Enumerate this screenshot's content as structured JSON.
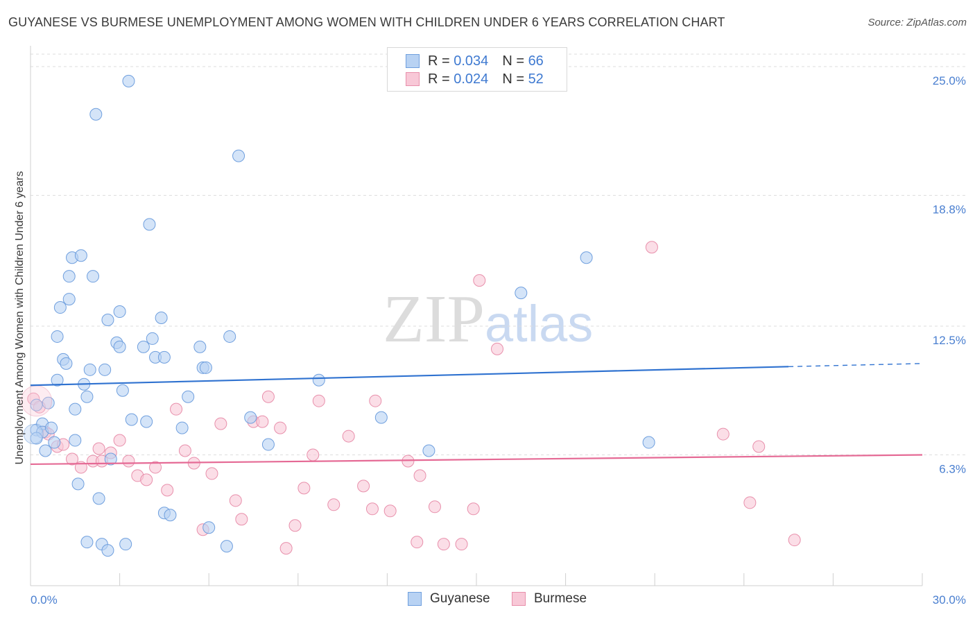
{
  "title": "GUYANESE VS BURMESE UNEMPLOYMENT AMONG WOMEN WITH CHILDREN UNDER 6 YEARS CORRELATION CHART",
  "source": "Source: ZipAtlas.com",
  "watermark": {
    "zip": "ZIP",
    "atlas": "atlas"
  },
  "colors": {
    "guyanese_fill": "#b8d2f3",
    "guyanese_stroke": "#6f9fde",
    "guyanese_line": "#2f72d0",
    "burmese_fill": "#f8c8d7",
    "burmese_stroke": "#e88fab",
    "burmese_line": "#e56a95",
    "tick_text": "#4a7fd0",
    "grid": "#dddddd"
  },
  "legend_top": [
    {
      "r_label": "R =",
      "r_value": "0.034",
      "n_label": "N =",
      "n_value": "66"
    },
    {
      "r_label": "R =",
      "r_value": "0.024",
      "n_label": "N =",
      "n_value": "52"
    }
  ],
  "chart_data": {
    "type": "scatter",
    "title": "GUYANESE VS BURMESE UNEMPLOYMENT AMONG WOMEN WITH CHILDREN UNDER 6 YEARS CORRELATION CHART",
    "xlabel": "",
    "ylabel": "Unemployment Among Women with Children Under 6 years",
    "xlim": [
      0,
      30
    ],
    "ylim": [
      0,
      25.6
    ],
    "x_tick_labels": [
      "0.0%",
      "30.0%"
    ],
    "y_ticks": [
      6.3,
      12.5,
      18.8,
      25.0
    ],
    "y_tick_labels": [
      "6.3%",
      "12.5%",
      "18.8%",
      "25.0%"
    ],
    "grid": "horizontal dashed",
    "legend_placement": "bottom-center",
    "series": [
      {
        "name": "Guyanese",
        "r": 0.034,
        "n": 66,
        "trend": {
          "x0": 0,
          "y0": 9.65,
          "x1": 25.5,
          "y1": 10.55,
          "x_dashed_end": 30,
          "y_dashed_end": 10.7
        },
        "points": [
          [
            0.2,
            8.7
          ],
          [
            0.2,
            7.5
          ],
          [
            0.4,
            7.8
          ],
          [
            0.4,
            7.4
          ],
          [
            0.5,
            6.5
          ],
          [
            0.7,
            7.6
          ],
          [
            0.8,
            6.9
          ],
          [
            0.9,
            12.0
          ],
          [
            0.9,
            9.9
          ],
          [
            1.0,
            13.4
          ],
          [
            1.1,
            10.9
          ],
          [
            1.2,
            10.7
          ],
          [
            1.3,
            14.9
          ],
          [
            1.3,
            13.8
          ],
          [
            1.4,
            15.8
          ],
          [
            1.5,
            8.5
          ],
          [
            1.6,
            4.9
          ],
          [
            1.7,
            15.9
          ],
          [
            1.8,
            9.7
          ],
          [
            1.9,
            9.1
          ],
          [
            1.9,
            2.1
          ],
          [
            2.0,
            10.4
          ],
          [
            2.1,
            14.9
          ],
          [
            2.2,
            22.7
          ],
          [
            2.3,
            4.2
          ],
          [
            2.4,
            2.0
          ],
          [
            2.5,
            10.4
          ],
          [
            2.6,
            12.8
          ],
          [
            2.6,
            1.7
          ],
          [
            2.7,
            6.1
          ],
          [
            2.9,
            11.7
          ],
          [
            3.0,
            11.5
          ],
          [
            3.0,
            13.2
          ],
          [
            3.1,
            9.4
          ],
          [
            3.2,
            2.0
          ],
          [
            3.3,
            24.3
          ],
          [
            3.4,
            8.0
          ],
          [
            3.8,
            11.5
          ],
          [
            3.9,
            7.9
          ],
          [
            4.0,
            17.4
          ],
          [
            4.1,
            11.9
          ],
          [
            4.2,
            11.0
          ],
          [
            4.4,
            12.9
          ],
          [
            4.5,
            11.0
          ],
          [
            4.5,
            3.5
          ],
          [
            4.7,
            3.4
          ],
          [
            5.1,
            7.6
          ],
          [
            5.3,
            9.1
          ],
          [
            5.7,
            11.5
          ],
          [
            5.8,
            10.5
          ],
          [
            5.9,
            10.5
          ],
          [
            6.0,
            2.8
          ],
          [
            6.6,
            1.9
          ],
          [
            6.7,
            12.0
          ],
          [
            7.0,
            20.7
          ],
          [
            7.4,
            8.1
          ],
          [
            8.0,
            6.8
          ],
          [
            9.7,
            9.9
          ],
          [
            11.8,
            8.1
          ],
          [
            13.4,
            6.5
          ],
          [
            16.5,
            14.1
          ],
          [
            18.7,
            15.8
          ],
          [
            20.8,
            6.9
          ],
          [
            0.2,
            7.1
          ],
          [
            1.5,
            7.0
          ],
          [
            0.6,
            8.8
          ]
        ]
      },
      {
        "name": "Burmese",
        "r": 0.024,
        "n": 52,
        "trend": {
          "x0": 0,
          "y0": 5.85,
          "x1": 30,
          "y1": 6.3
        },
        "points": [
          [
            0.1,
            9.0
          ],
          [
            0.3,
            8.6
          ],
          [
            0.5,
            7.4
          ],
          [
            0.6,
            7.3
          ],
          [
            0.9,
            6.7
          ],
          [
            1.1,
            6.8
          ],
          [
            1.4,
            6.1
          ],
          [
            1.7,
            5.7
          ],
          [
            2.1,
            6.0
          ],
          [
            2.3,
            6.6
          ],
          [
            2.4,
            6.0
          ],
          [
            2.7,
            6.4
          ],
          [
            3.0,
            7.0
          ],
          [
            3.3,
            6.0
          ],
          [
            3.6,
            5.3
          ],
          [
            3.9,
            5.1
          ],
          [
            4.2,
            5.7
          ],
          [
            4.6,
            4.6
          ],
          [
            4.9,
            8.5
          ],
          [
            5.2,
            6.5
          ],
          [
            5.5,
            5.9
          ],
          [
            5.8,
            2.7
          ],
          [
            6.1,
            5.4
          ],
          [
            6.4,
            7.8
          ],
          [
            6.9,
            4.1
          ],
          [
            7.1,
            3.2
          ],
          [
            7.5,
            7.9
          ],
          [
            7.8,
            7.9
          ],
          [
            8.0,
            9.1
          ],
          [
            8.4,
            7.6
          ],
          [
            8.6,
            1.8
          ],
          [
            8.9,
            2.9
          ],
          [
            9.2,
            4.7
          ],
          [
            9.5,
            6.3
          ],
          [
            9.7,
            8.9
          ],
          [
            10.2,
            3.9
          ],
          [
            10.7,
            7.2
          ],
          [
            11.2,
            4.8
          ],
          [
            11.5,
            3.7
          ],
          [
            11.6,
            8.9
          ],
          [
            12.1,
            3.6
          ],
          [
            12.7,
            6.0
          ],
          [
            13.0,
            2.1
          ],
          [
            13.1,
            5.3
          ],
          [
            13.6,
            3.8
          ],
          [
            13.9,
            2.0
          ],
          [
            14.5,
            2.0
          ],
          [
            14.9,
            3.7
          ],
          [
            15.1,
            14.7
          ],
          [
            15.7,
            11.4
          ],
          [
            20.9,
            16.3
          ],
          [
            23.3,
            7.3
          ]
        ]
      }
    ],
    "extra_burmese_points": [
      [
        24.2,
        4.0
      ],
      [
        24.5,
        6.7
      ],
      [
        25.7,
        2.2
      ]
    ]
  },
  "legend_bottom": [
    {
      "label": "Guyanese"
    },
    {
      "label": "Burmese"
    }
  ]
}
